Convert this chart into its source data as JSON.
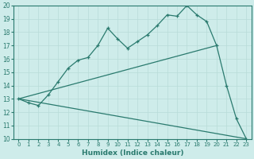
{
  "xlabel": "Humidex (Indice chaleur)",
  "xlim": [
    -0.5,
    23.5
  ],
  "ylim": [
    10,
    20
  ],
  "yticks": [
    10,
    11,
    12,
    13,
    14,
    15,
    16,
    17,
    18,
    19,
    20
  ],
  "xticks": [
    0,
    1,
    2,
    3,
    4,
    5,
    6,
    7,
    8,
    9,
    10,
    11,
    12,
    13,
    14,
    15,
    16,
    17,
    18,
    19,
    20,
    21,
    22,
    23
  ],
  "background_color": "#ceecea",
  "line_color": "#2a7a6e",
  "grid_color": "#b8dcd8",
  "line1_x": [
    0,
    1,
    2,
    3,
    4,
    5,
    6,
    7,
    8,
    9,
    10,
    11,
    12,
    13,
    14,
    15,
    16,
    17,
    18,
    19,
    20,
    21,
    22,
    23
  ],
  "line1_y": [
    13.0,
    12.7,
    12.5,
    13.3,
    14.3,
    15.3,
    15.9,
    16.1,
    17.0,
    18.3,
    17.5,
    16.8,
    17.3,
    17.8,
    18.5,
    19.3,
    19.2,
    20.0,
    19.3,
    18.8,
    17.0,
    14.0,
    11.5,
    10.0
  ],
  "line2_x": [
    0,
    20
  ],
  "line2_y": [
    13.0,
    17.0
  ],
  "line3_x": [
    0,
    23
  ],
  "line3_y": [
    13.0,
    10.0
  ]
}
